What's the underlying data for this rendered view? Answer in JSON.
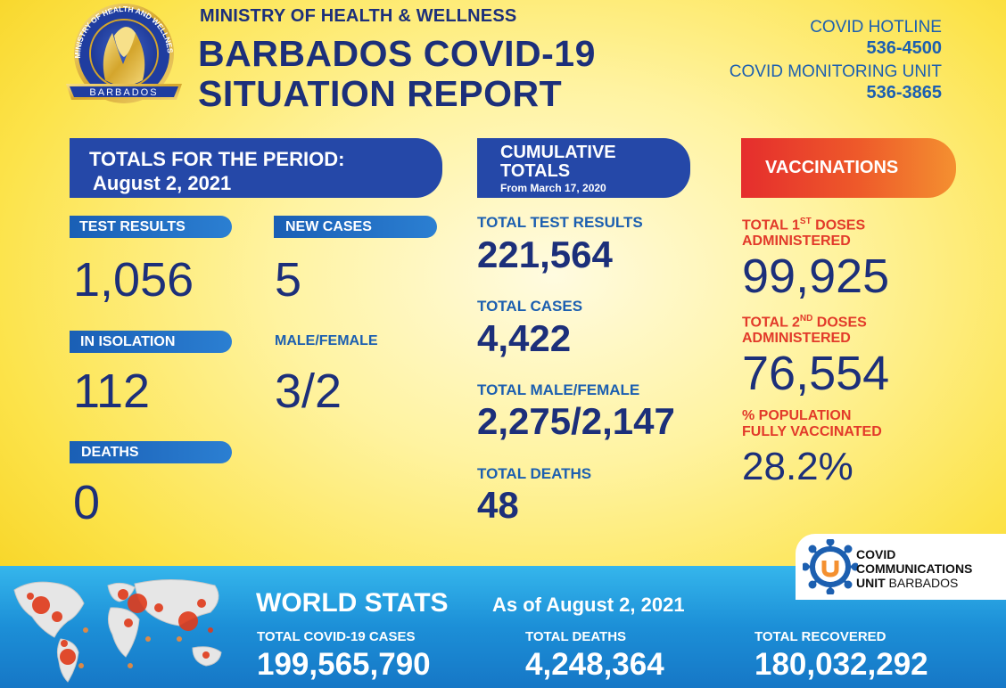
{
  "header": {
    "ministry": "MINISTRY OF HEALTH & WELLNESS",
    "title_line1": "BARBADOS COVID-19",
    "title_line2": "SITUATION REPORT",
    "seal_text_top": "MINISTRY OF HEALTH AND WELLNESS",
    "seal_text_bottom": "BARBADOS",
    "hotline_label": "COVID HOTLINE",
    "hotline_number": "536-4500",
    "monitoring_label": "COVID MONITORING UNIT",
    "monitoring_number": "536-3865"
  },
  "period": {
    "banner_title": "TOTALS FOR THE PERIOD:",
    "banner_date": "August 2, 2021",
    "test_results_label": "TEST RESULTS",
    "test_results_value": "1,056",
    "new_cases_label": "NEW CASES",
    "new_cases_value": "5",
    "isolation_label": "IN ISOLATION",
    "isolation_value": "112",
    "male_female_label": "MALE/FEMALE",
    "male_female_value": "3/2",
    "deaths_label": "DEATHS",
    "deaths_value": "0"
  },
  "cumulative": {
    "banner_line1": "CUMULATIVE",
    "banner_line2": "TOTALS",
    "banner_sub": "From March 17, 2020",
    "test_label": "TOTAL TEST RESULTS",
    "test_value": "221,564",
    "cases_label": "TOTAL CASES",
    "cases_value": "4,422",
    "mf_label": "TOTAL MALE/FEMALE",
    "mf_value": "2,275/2,147",
    "deaths_label": "TOTAL DEATHS",
    "deaths_value": "48"
  },
  "vaccinations": {
    "banner": "VACCINATIONS",
    "first_label_a": "TOTAL 1",
    "first_label_sup": "ST",
    "first_label_b": " DOSES",
    "first_label_line2": "ADMINISTERED",
    "first_value": "99,925",
    "second_label_a": "TOTAL 2",
    "second_label_sup": "ND",
    "second_label_b": " DOSES",
    "second_label_line2": "ADMINISTERED",
    "second_value": "76,554",
    "pop_label_line1": "% POPULATION",
    "pop_label_line2": "FULLY VACCINATED",
    "pop_value": "28.2%"
  },
  "ccu": {
    "line1": "COVID",
    "line2": "COMMUNICATIONS",
    "line3_bold": "UNIT",
    "line3_rest": " BARBADOS"
  },
  "world": {
    "title": "WORLD STATS",
    "as_of": "As of August 2, 2021",
    "cases_label": "TOTAL COVID-19 CASES",
    "cases_value": "199,565,790",
    "deaths_label": "TOTAL DEATHS",
    "deaths_value": "4,248,364",
    "recovered_label": "TOTAL RECOVERED",
    "recovered_value": "180,032,292"
  },
  "colors": {
    "navy": "#1c2f7a",
    "blue": "#1c5fb0",
    "banner_blue": "#2548a8",
    "red": "#e23a2a",
    "yellow": "#fce34a",
    "sky": "#1c8fd7"
  },
  "icons": [
    "ministry-seal-icon",
    "ccu-virus-logo-icon",
    "world-map-icon"
  ]
}
